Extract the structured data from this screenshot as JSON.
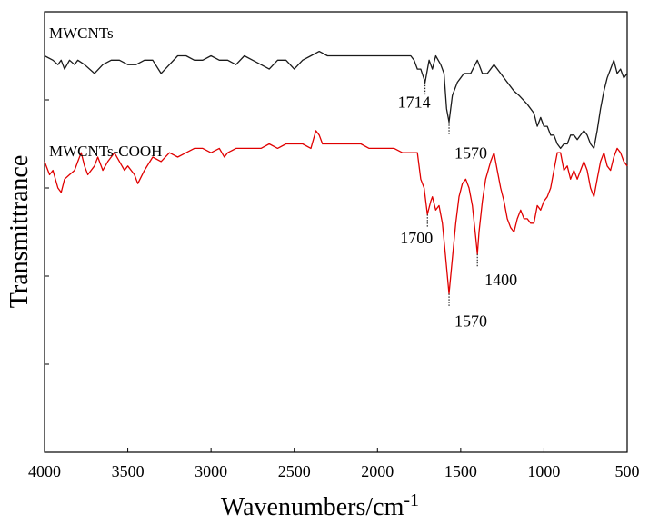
{
  "chart_data": {
    "type": "line",
    "title": "",
    "xlabel": "Wavenumbers/cm",
    "xlabel_superscript": "-1",
    "ylabel": "Transmittrance",
    "xlim": [
      4000,
      500
    ],
    "ylim": [
      0,
      100
    ],
    "x_reversed": true,
    "y_ticks_labeled": false,
    "grid": false,
    "legend": "none",
    "xticks": [
      4000,
      3500,
      3000,
      2500,
      2000,
      1500,
      1000,
      500
    ],
    "xtick_labels": [
      "4000",
      "3500",
      "3000",
      "2500",
      "2000",
      "1500",
      "1000",
      "500"
    ],
    "series": [
      {
        "name": "MWCNTs",
        "color": "#1a1a1a",
        "points": [
          [
            4000,
            90
          ],
          [
            3950,
            89
          ],
          [
            3920,
            88
          ],
          [
            3900,
            89
          ],
          [
            3880,
            87
          ],
          [
            3850,
            89
          ],
          [
            3820,
            88
          ],
          [
            3800,
            89
          ],
          [
            3760,
            88
          ],
          [
            3700,
            86
          ],
          [
            3650,
            88
          ],
          [
            3600,
            89
          ],
          [
            3550,
            89
          ],
          [
            3500,
            88
          ],
          [
            3450,
            88
          ],
          [
            3400,
            89
          ],
          [
            3350,
            89
          ],
          [
            3300,
            86
          ],
          [
            3250,
            88
          ],
          [
            3200,
            90
          ],
          [
            3150,
            90
          ],
          [
            3100,
            89
          ],
          [
            3050,
            89
          ],
          [
            3000,
            90
          ],
          [
            2950,
            89
          ],
          [
            2900,
            89
          ],
          [
            2850,
            88
          ],
          [
            2800,
            90
          ],
          [
            2750,
            89
          ],
          [
            2700,
            88
          ],
          [
            2650,
            87
          ],
          [
            2600,
            89
          ],
          [
            2550,
            89
          ],
          [
            2500,
            87
          ],
          [
            2450,
            89
          ],
          [
            2400,
            90
          ],
          [
            2350,
            91
          ],
          [
            2300,
            90
          ],
          [
            2250,
            90
          ],
          [
            2200,
            90
          ],
          [
            2150,
            90
          ],
          [
            2100,
            90
          ],
          [
            2050,
            90
          ],
          [
            2000,
            90
          ],
          [
            1950,
            90
          ],
          [
            1900,
            90
          ],
          [
            1850,
            90
          ],
          [
            1800,
            90
          ],
          [
            1780,
            89
          ],
          [
            1760,
            87
          ],
          [
            1740,
            87
          ],
          [
            1714,
            84
          ],
          [
            1690,
            89
          ],
          [
            1670,
            87
          ],
          [
            1650,
            90
          ],
          [
            1620,
            88
          ],
          [
            1600,
            86
          ],
          [
            1585,
            78
          ],
          [
            1570,
            75
          ],
          [
            1550,
            81
          ],
          [
            1520,
            84
          ],
          [
            1480,
            86
          ],
          [
            1440,
            86
          ],
          [
            1400,
            89
          ],
          [
            1370,
            86
          ],
          [
            1340,
            86
          ],
          [
            1300,
            88
          ],
          [
            1260,
            86
          ],
          [
            1220,
            84
          ],
          [
            1180,
            82
          ],
          [
            1150,
            81
          ],
          [
            1100,
            79
          ],
          [
            1060,
            77
          ],
          [
            1040,
            74
          ],
          [
            1020,
            76
          ],
          [
            1000,
            74
          ],
          [
            980,
            74
          ],
          [
            960,
            72
          ],
          [
            940,
            72
          ],
          [
            920,
            70
          ],
          [
            900,
            69
          ],
          [
            880,
            70
          ],
          [
            860,
            70
          ],
          [
            840,
            72
          ],
          [
            820,
            72
          ],
          [
            800,
            71
          ],
          [
            780,
            72
          ],
          [
            760,
            73
          ],
          [
            740,
            72
          ],
          [
            720,
            70
          ],
          [
            700,
            69
          ],
          [
            680,
            73
          ],
          [
            660,
            78
          ],
          [
            640,
            82
          ],
          [
            620,
            85
          ],
          [
            600,
            87
          ],
          [
            580,
            89
          ],
          [
            560,
            86
          ],
          [
            540,
            87
          ],
          [
            520,
            85
          ],
          [
            500,
            86
          ]
        ]
      },
      {
        "name": "MWCNTs-COOH",
        "color": "#e00000",
        "points": [
          [
            4000,
            66
          ],
          [
            3970,
            63
          ],
          [
            3950,
            64
          ],
          [
            3920,
            60
          ],
          [
            3900,
            59
          ],
          [
            3880,
            62
          ],
          [
            3850,
            63
          ],
          [
            3820,
            64
          ],
          [
            3800,
            66
          ],
          [
            3780,
            68
          ],
          [
            3760,
            65
          ],
          [
            3740,
            63
          ],
          [
            3700,
            65
          ],
          [
            3680,
            67
          ],
          [
            3650,
            64
          ],
          [
            3620,
            66
          ],
          [
            3600,
            67
          ],
          [
            3580,
            68
          ],
          [
            3550,
            66
          ],
          [
            3520,
            64
          ],
          [
            3500,
            65
          ],
          [
            3460,
            63
          ],
          [
            3440,
            61
          ],
          [
            3400,
            64
          ],
          [
            3350,
            67
          ],
          [
            3300,
            66
          ],
          [
            3250,
            68
          ],
          [
            3200,
            67
          ],
          [
            3150,
            68
          ],
          [
            3100,
            69
          ],
          [
            3050,
            69
          ],
          [
            3000,
            68
          ],
          [
            2950,
            69
          ],
          [
            2920,
            67
          ],
          [
            2900,
            68
          ],
          [
            2850,
            69
          ],
          [
            2800,
            69
          ],
          [
            2750,
            69
          ],
          [
            2700,
            69
          ],
          [
            2650,
            70
          ],
          [
            2600,
            69
          ],
          [
            2550,
            70
          ],
          [
            2500,
            70
          ],
          [
            2450,
            70
          ],
          [
            2400,
            69
          ],
          [
            2370,
            73
          ],
          [
            2350,
            72
          ],
          [
            2330,
            70
          ],
          [
            2300,
            70
          ],
          [
            2250,
            70
          ],
          [
            2200,
            70
          ],
          [
            2150,
            70
          ],
          [
            2100,
            70
          ],
          [
            2050,
            69
          ],
          [
            2000,
            69
          ],
          [
            1950,
            69
          ],
          [
            1900,
            69
          ],
          [
            1850,
            68
          ],
          [
            1800,
            68
          ],
          [
            1760,
            68
          ],
          [
            1740,
            62
          ],
          [
            1720,
            60
          ],
          [
            1700,
            54
          ],
          [
            1680,
            57
          ],
          [
            1670,
            58
          ],
          [
            1650,
            55
          ],
          [
            1630,
            56
          ],
          [
            1610,
            52
          ],
          [
            1595,
            46
          ],
          [
            1570,
            36
          ],
          [
            1550,
            44
          ],
          [
            1530,
            52
          ],
          [
            1510,
            58
          ],
          [
            1490,
            61
          ],
          [
            1470,
            62
          ],
          [
            1450,
            60
          ],
          [
            1430,
            56
          ],
          [
            1410,
            49
          ],
          [
            1400,
            45
          ],
          [
            1390,
            50
          ],
          [
            1370,
            57
          ],
          [
            1350,
            62
          ],
          [
            1320,
            66
          ],
          [
            1300,
            68
          ],
          [
            1280,
            64
          ],
          [
            1260,
            60
          ],
          [
            1240,
            57
          ],
          [
            1220,
            53
          ],
          [
            1200,
            51
          ],
          [
            1180,
            50
          ],
          [
            1160,
            53
          ],
          [
            1140,
            55
          ],
          [
            1120,
            53
          ],
          [
            1100,
            53
          ],
          [
            1080,
            52
          ],
          [
            1060,
            52
          ],
          [
            1040,
            56
          ],
          [
            1020,
            55
          ],
          [
            1000,
            57
          ],
          [
            980,
            58
          ],
          [
            960,
            60
          ],
          [
            940,
            64
          ],
          [
            920,
            68
          ],
          [
            900,
            68
          ],
          [
            880,
            64
          ],
          [
            860,
            65
          ],
          [
            840,
            62
          ],
          [
            820,
            64
          ],
          [
            800,
            62
          ],
          [
            780,
            64
          ],
          [
            760,
            66
          ],
          [
            740,
            64
          ],
          [
            720,
            60
          ],
          [
            700,
            58
          ],
          [
            680,
            62
          ],
          [
            660,
            66
          ],
          [
            640,
            68
          ],
          [
            620,
            65
          ],
          [
            600,
            64
          ],
          [
            580,
            67
          ],
          [
            560,
            69
          ],
          [
            540,
            68
          ],
          [
            520,
            66
          ],
          [
            500,
            65
          ]
        ]
      }
    ],
    "annotations": [
      {
        "series": "MWCNTs",
        "text": "1714",
        "x": 1714
      },
      {
        "series": "MWCNTs",
        "text": "1570",
        "x": 1570
      },
      {
        "series": "MWCNTs-COOH",
        "text": "1700",
        "x": 1700
      },
      {
        "series": "MWCNTs-COOH",
        "text": "1400",
        "x": 1400
      },
      {
        "series": "MWCNTs-COOH",
        "text": "1570",
        "x": 1570
      }
    ]
  }
}
